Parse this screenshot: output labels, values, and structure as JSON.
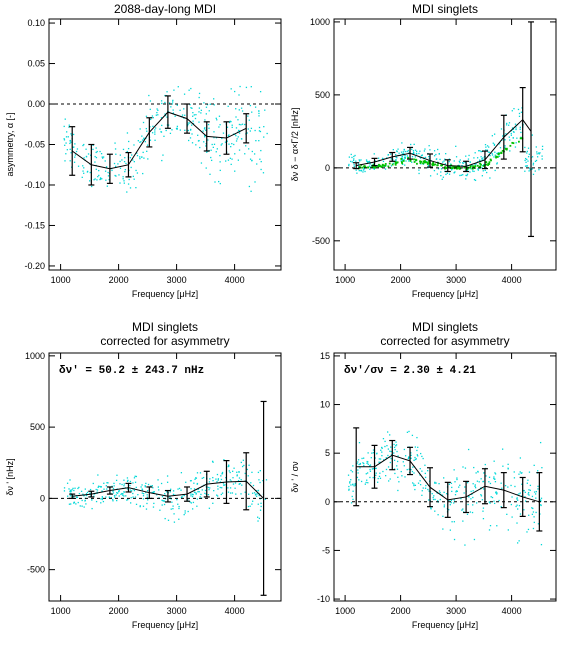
{
  "colors": {
    "scatter": "#00d8d8",
    "second_series": "#00c000",
    "line": "#000000"
  },
  "chart_data": [
    {
      "type": "line",
      "title": "2088-day-long MDI",
      "xlabel": "Frequency [μHz]",
      "ylabel": "asymmetry, α [-]",
      "xlim": [
        800,
        4800
      ],
      "ylim": [
        -0.205,
        0.105
      ],
      "xticks": [
        1000,
        2000,
        3000,
        4000
      ],
      "yticks": [
        -0.2,
        -0.15,
        -0.1,
        -0.05,
        0.0,
        0.05,
        0.1
      ],
      "ytick_labels": [
        "-0.20",
        "-0.15",
        "-0.10",
        "-0.05",
        "0.00",
        "0.05",
        "0.10"
      ],
      "hline": 0,
      "x": [
        1200,
        1530,
        1850,
        2170,
        2530,
        2850,
        3180,
        3520,
        3860,
        4200
      ],
      "y": [
        -0.058,
        -0.075,
        -0.08,
        -0.075,
        -0.035,
        -0.01,
        -0.018,
        -0.04,
        -0.042,
        -0.03
      ],
      "err": [
        0.03,
        0.025,
        0.018,
        0.015,
        0.018,
        0.02,
        0.018,
        0.018,
        0.02,
        0.018
      ],
      "scatter": {
        "center": -0.045,
        "spread": 0.035
      }
    },
    {
      "type": "line",
      "title": "MDI singlets",
      "xlabel": "Frequency [μHz]",
      "ylabel": "δν δ − α×Γ/2 [nHz]",
      "xlim": [
        800,
        4800
      ],
      "ylim": [
        -700,
        1020
      ],
      "xticks": [
        1000,
        2000,
        3000,
        4000
      ],
      "yticks": [
        -500,
        0,
        500,
        1000
      ],
      "ytick_labels": [
        "-500",
        "0",
        "500",
        "1000"
      ],
      "hline": 0,
      "x": [
        1200,
        1530,
        1850,
        2170,
        2530,
        2850,
        3180,
        3520,
        3860,
        4200
      ],
      "y": [
        15,
        40,
        75,
        100,
        50,
        15,
        10,
        55,
        210,
        330
      ],
      "err": [
        20,
        25,
        30,
        40,
        45,
        40,
        35,
        60,
        150,
        220
      ],
      "series2": [
        5,
        15,
        35,
        55,
        35,
        10,
        5,
        30,
        130,
        210
      ],
      "extra_bar": {
        "x": 4350,
        "y": 250,
        "lo": -470,
        "hi": 1000
      },
      "scatter": {
        "center": 60,
        "spread": 90
      }
    },
    {
      "type": "line",
      "title": "MDI singlets",
      "subtitle": "corrected for asymmetry",
      "xlabel": "Frequency [μHz]",
      "ylabel": "δν ' [nHz]",
      "annotation": "δν' = 50.2 ± 243.7 nHz",
      "xlim": [
        800,
        4800
      ],
      "ylim": [
        -720,
        1020
      ],
      "xticks": [
        1000,
        2000,
        3000,
        4000
      ],
      "yticks": [
        -500,
        0,
        500,
        1000
      ],
      "ytick_labels": [
        "-500",
        "0",
        "500",
        "1000"
      ],
      "hline": 0,
      "x": [
        1200,
        1530,
        1850,
        2170,
        2530,
        2850,
        3180,
        3520,
        3860,
        4200,
        4500
      ],
      "y": [
        15,
        30,
        55,
        75,
        40,
        15,
        30,
        100,
        115,
        120,
        0
      ],
      "err": [
        15,
        20,
        25,
        30,
        40,
        40,
        50,
        90,
        150,
        200,
        680
      ],
      "scatter": {
        "center": 30,
        "spread": 120
      }
    },
    {
      "type": "line",
      "title": "MDI singlets",
      "subtitle": "corrected for asymmetry",
      "xlabel": "Frequency [μHz]",
      "ylabel": "δν ' / σν",
      "annotation": "δν'/σν = 2.30 ± 4.21",
      "xlim": [
        800,
        4800
      ],
      "ylim": [
        -10.2,
        15.3
      ],
      "xticks": [
        1000,
        2000,
        3000,
        4000
      ],
      "yticks": [
        -10,
        -5,
        0,
        5,
        10,
        15
      ],
      "ytick_labels": [
        "-10",
        "-5",
        "0",
        "5",
        "10",
        "15"
      ],
      "hline": 0,
      "x": [
        1200,
        1530,
        1850,
        2170,
        2530,
        2850,
        3180,
        3520,
        3860,
        4200,
        4500
      ],
      "y": [
        3.6,
        3.6,
        4.8,
        4.2,
        1.5,
        0.2,
        0.5,
        1.6,
        1.2,
        0.5,
        0.0
      ],
      "err": [
        4.0,
        2.2,
        1.5,
        1.4,
        2.0,
        1.8,
        1.6,
        1.8,
        1.8,
        2.0,
        3.0
      ],
      "scatter": {
        "center": 1.5,
        "spread": 3.0
      }
    }
  ]
}
